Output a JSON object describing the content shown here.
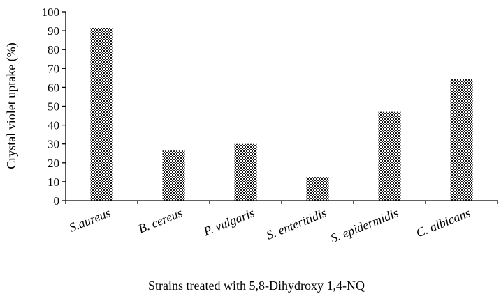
{
  "chart_data": {
    "type": "bar",
    "categories": [
      "S.aureus",
      "B. cereus",
      "P. vulgaris",
      "S. enteritidis",
      "S. epidermidis",
      "C. albicans"
    ],
    "values": [
      91.5,
      26.5,
      30,
      12.5,
      47,
      64.5
    ],
    "xlabel": "Strains treated with 5,8-Dihydroxy 1,4-NQ",
    "ylabel": "Crystal violet uptake (%)",
    "ylim": [
      0,
      100
    ],
    "yticks": [
      0,
      10,
      20,
      30,
      40,
      50,
      60,
      70,
      80,
      90,
      100
    ],
    "grid": false,
    "legend": "none",
    "bar_fill": "checker-pattern",
    "colors": {
      "bar_dark": "#1a1a1a",
      "bar_light": "#ffffff",
      "axis": "#000000"
    }
  }
}
